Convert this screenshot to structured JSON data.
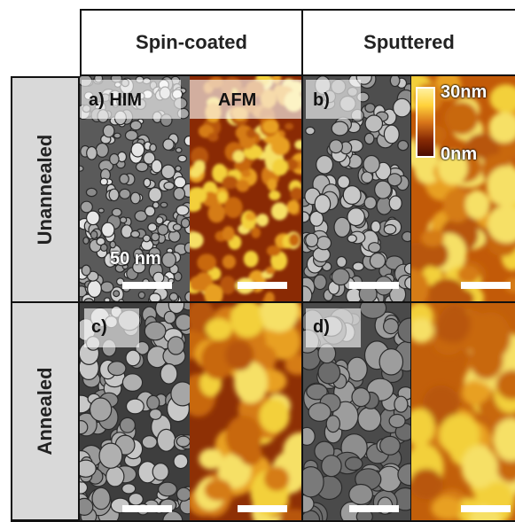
{
  "columns": {
    "left": "Spin-coated",
    "right": "Sputtered"
  },
  "rows": {
    "top": "Unannealed",
    "bottom": "Annealed"
  },
  "panel_labels": {
    "a": "a) HIM",
    "afm": "AFM",
    "b": "b)",
    "c": "c)",
    "d": "d)"
  },
  "scale_bar_text": "50 nm",
  "colorbar": {
    "max": "30nm",
    "min": "0nm"
  }
}
